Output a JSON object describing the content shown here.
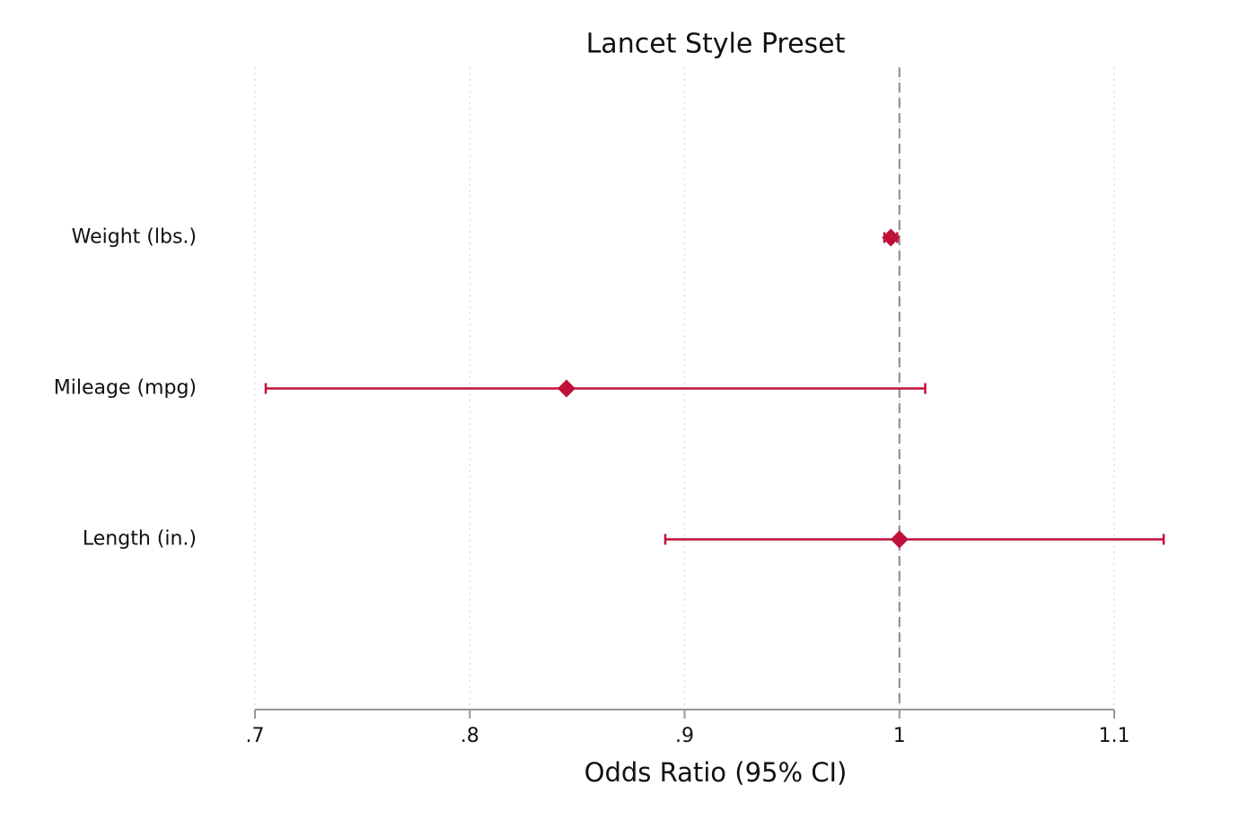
{
  "chart_data": {
    "type": "forest",
    "title": "Lancet Style Preset",
    "xlabel": "Odds Ratio (95% CI)",
    "categories": [
      "Weight (lbs.)",
      "Mileage (mpg)",
      "Length (in.)"
    ],
    "values": [
      0.996,
      0.845,
      1.0
    ],
    "ci_lower": [
      0.993,
      0.705,
      0.891
    ],
    "ci_upper": [
      0.999,
      1.012,
      1.123
    ],
    "color": "#c0103a",
    "xlim": [
      0.7,
      1.1
    ],
    "xticks": [
      {
        "value": 0.7,
        "label": ".7"
      },
      {
        "value": 0.8,
        "label": ".8"
      },
      {
        "value": 0.9,
        "label": ".9"
      },
      1,
      1.1
    ],
    "reference_line": 1,
    "grid": true
  }
}
